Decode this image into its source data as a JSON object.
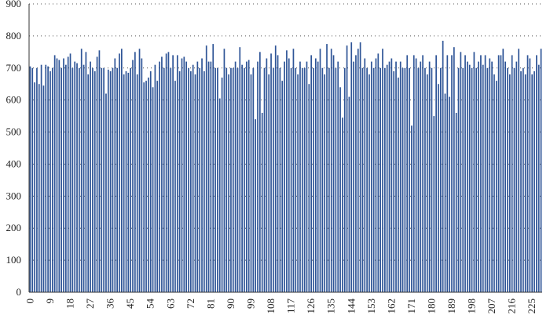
{
  "chart_data": {
    "type": "bar",
    "color": "#2f5597",
    "grid": true,
    "ylim": [
      0,
      900
    ],
    "yticks": [
      0,
      100,
      200,
      300,
      400,
      500,
      600,
      700,
      800,
      900
    ],
    "categories": [
      "0",
      null,
      null,
      null,
      null,
      null,
      null,
      null,
      null,
      "9",
      null,
      null,
      null,
      null,
      null,
      null,
      null,
      null,
      "18",
      null,
      null,
      null,
      null,
      null,
      null,
      null,
      null,
      "27",
      null,
      null,
      null,
      null,
      null,
      null,
      null,
      null,
      "36",
      null,
      null,
      null,
      null,
      null,
      null,
      null,
      null,
      "45",
      null,
      null,
      null,
      null,
      null,
      null,
      null,
      null,
      "54",
      null,
      null,
      null,
      null,
      null,
      null,
      null,
      null,
      "63",
      null,
      null,
      null,
      null,
      null,
      null,
      null,
      null,
      "72",
      null,
      null,
      null,
      null,
      null,
      null,
      null,
      null,
      "81",
      null,
      null,
      null,
      null,
      null,
      null,
      null,
      null,
      "90",
      null,
      null,
      null,
      null,
      null,
      null,
      null,
      null,
      "99",
      null,
      null,
      null,
      null,
      null,
      null,
      null,
      null,
      "108",
      null,
      null,
      null,
      null,
      null,
      null,
      null,
      null,
      "117",
      null,
      null,
      null,
      null,
      null,
      null,
      null,
      null,
      "126",
      null,
      null,
      null,
      null,
      null,
      null,
      null,
      null,
      "135",
      null,
      null,
      null,
      null,
      null,
      null,
      null,
      null,
      "144",
      null,
      null,
      null,
      null,
      null,
      null,
      null,
      null,
      "153",
      null,
      null,
      null,
      null,
      null,
      null,
      null,
      null,
      "162",
      null,
      null,
      null,
      null,
      null,
      null,
      null,
      null,
      "171",
      null,
      null,
      null,
      null,
      null,
      null,
      null,
      null,
      "180",
      null,
      null,
      null,
      null,
      null,
      null,
      null,
      null,
      "189",
      null,
      null,
      null,
      null,
      null,
      null,
      null,
      null,
      "198",
      null,
      null,
      null,
      null,
      null,
      null,
      null,
      null,
      "207",
      null,
      null,
      null,
      null,
      null,
      null,
      null,
      null,
      "216",
      null,
      null,
      null,
      null,
      null,
      null,
      null,
      null,
      "225",
      null,
      null,
      null,
      null
    ],
    "values": [
      705,
      700,
      655,
      700,
      650,
      710,
      645,
      710,
      705,
      690,
      700,
      740,
      730,
      725,
      700,
      730,
      710,
      735,
      745,
      700,
      720,
      715,
      700,
      760,
      710,
      750,
      680,
      720,
      700,
      690,
      735,
      755,
      700,
      700,
      620,
      695,
      690,
      700,
      730,
      700,
      745,
      760,
      680,
      690,
      685,
      700,
      725,
      750,
      680,
      760,
      730,
      655,
      660,
      670,
      690,
      640,
      710,
      660,
      720,
      735,
      700,
      745,
      750,
      700,
      740,
      660,
      740,
      690,
      730,
      735,
      720,
      700,
      690,
      710,
      680,
      720,
      700,
      730,
      690,
      770,
      720,
      720,
      775,
      700,
      700,
      605,
      670,
      760,
      700,
      680,
      700,
      700,
      720,
      700,
      765,
      710,
      700,
      720,
      725,
      680,
      700,
      540,
      720,
      750,
      560,
      700,
      730,
      680,
      745,
      700,
      770,
      740,
      700,
      660,
      720,
      755,
      730,
      700,
      760,
      700,
      680,
      720,
      700,
      700,
      720,
      650,
      740,
      700,
      730,
      720,
      760,
      700,
      680,
      775,
      700,
      760,
      740,
      700,
      720,
      640,
      545,
      700,
      770,
      610,
      780,
      720,
      740,
      760,
      780,
      700,
      730,
      700,
      680,
      720,
      700,
      730,
      745,
      700,
      760,
      700,
      710,
      720,
      730,
      690,
      720,
      670,
      720,
      700,
      700,
      740,
      700,
      520,
      740,
      730,
      700,
      720,
      740,
      700,
      680,
      720,
      700,
      550,
      740,
      650,
      700,
      785,
      620,
      740,
      610,
      740,
      765,
      560,
      700,
      750,
      700,
      740,
      720,
      710,
      700,
      750,
      700,
      720,
      740,
      710,
      740,
      700,
      730,
      720,
      680,
      660,
      740,
      740,
      760,
      720,
      700,
      680,
      740,
      700,
      720,
      760,
      690,
      700,
      680,
      740,
      730,
      680,
      690,
      740,
      710,
      760
    ]
  }
}
